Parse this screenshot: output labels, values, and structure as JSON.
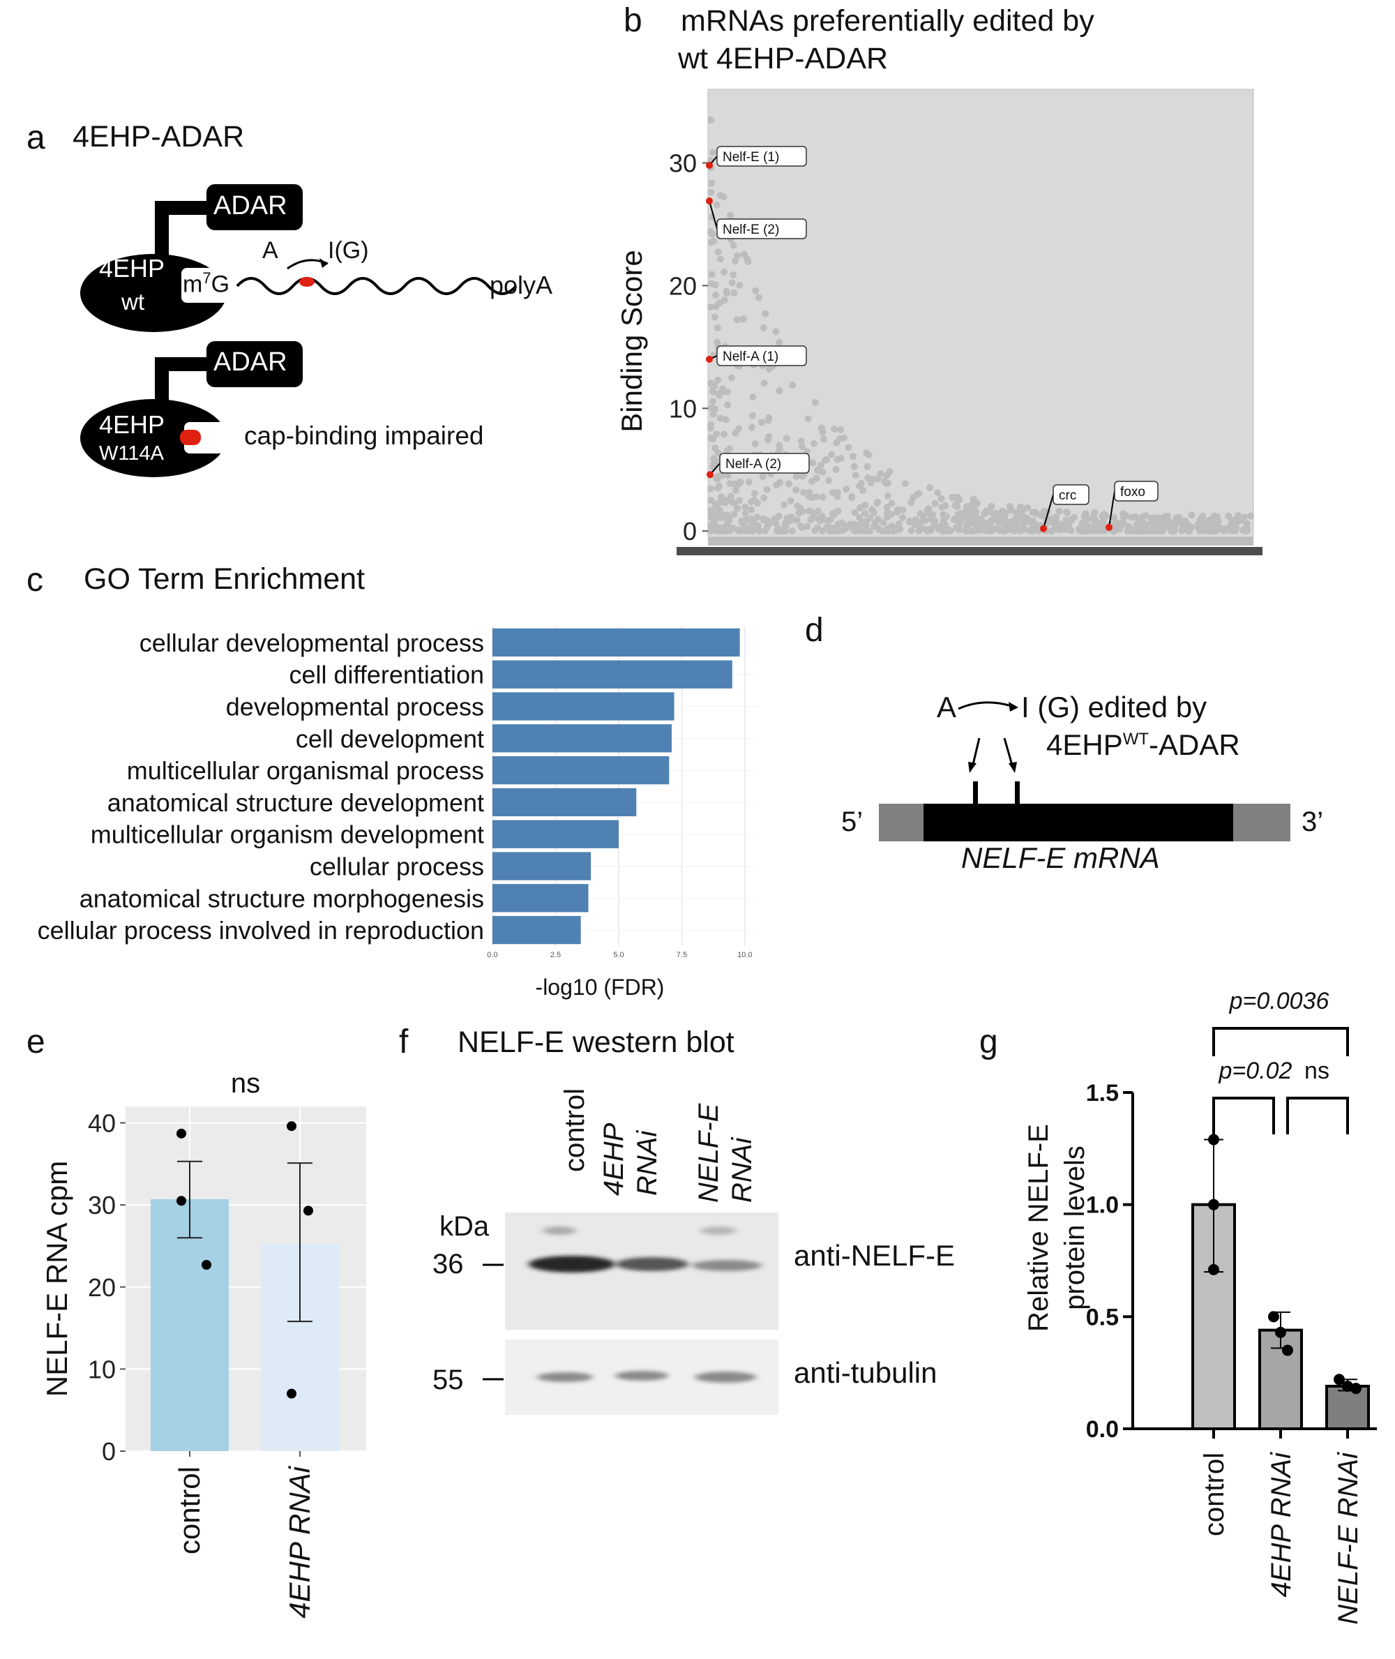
{
  "panel_a": {
    "label": "a",
    "title": "4EHP-ADAR",
    "adar": "ADAR",
    "wt_protein": "4EHP",
    "wt_sub": "wt",
    "cap": "m",
    "cap_sup": "7",
    "cap_g": "G",
    "edit_from": "A",
    "edit_to": "I(G)",
    "polya": "polyA",
    "mut_protein": "4EHP",
    "mut_sub": "W114A",
    "mut_note": "cap-binding impaired"
  },
  "panel_b": {
    "label": "b",
    "title_line1": "mRNAs preferentially edited by",
    "title_line2": "wt 4EHP-ADAR"
  },
  "panel_c": {
    "label": "c",
    "title": "GO Term Enrichment"
  },
  "panel_d": {
    "label": "d",
    "edit_from": "A",
    "edit_line1": "I (G) edited by",
    "edit_line2_pre": "4EHP",
    "edit_line2_sup": "WT",
    "edit_line2_post": "-ADAR",
    "five_prime": "5’",
    "three_prime": "3’",
    "mrna_name": "NELF-E mRNA"
  },
  "panel_e": {
    "label": "e"
  },
  "panel_f": {
    "label": "f",
    "title": "NELF-E western blot",
    "lanes": [
      "control",
      "4EHP RNAi",
      "NELF-E RNAi"
    ],
    "kda": "kDa",
    "marker_36": "36",
    "marker_55": "55",
    "anti_nelf": "anti-NELF-E",
    "anti_tubulin": "anti-tubulin"
  },
  "panel_g": {
    "label": "g"
  },
  "chart_data": [
    {
      "id": "b",
      "type": "scatter",
      "title": "",
      "xlabel": "",
      "ylabel": "Binding Score",
      "ylim": [
        -0.5,
        36
      ],
      "yticks": [
        0,
        10,
        20,
        30
      ],
      "grid": false,
      "highlighted": [
        {
          "label": "Nelf-E (1)",
          "x": 0.2,
          "y": 29.8
        },
        {
          "label": "Nelf-E (2)",
          "x": 0.3,
          "y": 26.9
        },
        {
          "label": "Nelf-A (1)",
          "x": 0.4,
          "y": 14.0
        },
        {
          "label": "Nelf-A (2)",
          "x": 0.5,
          "y": 4.6
        },
        {
          "label": "crc",
          "x": 60,
          "y": 0.2
        },
        {
          "label": "foxo",
          "x": 72,
          "y": 0.3
        }
      ],
      "background_trend": "exponential decay from ~35 to ~0 across ranked mRNAs"
    },
    {
      "id": "c",
      "type": "bar",
      "orientation": "horizontal",
      "title": "GO Term Enrichment",
      "xlabel": "-log10 (FDR)",
      "ylabel": "",
      "xlim": [
        0,
        10.5
      ],
      "xticks": [
        "0.0",
        "2.5",
        "5.0",
        "7.5",
        "10.0"
      ],
      "categories": [
        "cellular developmental process",
        "cell differentiation",
        "developmental process",
        "cell development",
        "multicellular organismal process",
        "anatomical structure development",
        "multicellular organism development",
        "cellular process",
        "anatomical structure morphogenesis",
        "cellular process involved in reproduction"
      ],
      "values": [
        9.8,
        9.5,
        7.2,
        7.1,
        7.0,
        5.7,
        5.0,
        3.9,
        3.8,
        3.5
      ],
      "color": "#4f81b3"
    },
    {
      "id": "e",
      "type": "bar",
      "title": "ns",
      "xlabel": "",
      "ylabel": "NELF-E RNA cpm",
      "ylim": [
        0,
        42
      ],
      "yticks": [
        0,
        10,
        20,
        30,
        40
      ],
      "categories": [
        "control",
        "4EHP RNAi"
      ],
      "values": [
        30.7,
        25.3
      ],
      "error_low": [
        26.0,
        15.8
      ],
      "error_high": [
        35.3,
        35.1
      ],
      "points": [
        [
          38.7,
          30.5,
          22.7
        ],
        [
          39.6,
          29.3,
          7.0
        ]
      ],
      "colors": [
        "#a6d0e4",
        "#deebf6"
      ]
    },
    {
      "id": "g",
      "type": "bar",
      "title": "",
      "xlabel": "",
      "ylabel": "Relative NELF-E protein levels",
      "ylim": [
        0,
        1.5
      ],
      "yticks": [
        "0.0",
        "0.5",
        "1.0",
        "1.5"
      ],
      "categories": [
        "control",
        "4EHP RNAi",
        "NELF-E RNAi"
      ],
      "values": [
        1.0,
        0.44,
        0.19
      ],
      "error_low": [
        0.7,
        0.36,
        0.17
      ],
      "error_high": [
        1.29,
        0.52,
        0.22
      ],
      "points": [
        [
          1.29,
          1.0,
          0.71
        ],
        [
          0.5,
          0.43,
          0.35
        ],
        [
          0.22,
          0.19,
          0.18
        ]
      ],
      "colors": [
        "#bfbfbf",
        "#a6a6a6",
        "#7f7f7f"
      ],
      "comparisons": [
        {
          "pair": [
            "control",
            "NELF-E RNAi"
          ],
          "label": "p=0.0036"
        },
        {
          "pair": [
            "control",
            "4EHP RNAi"
          ],
          "label": "p=0.02"
        },
        {
          "pair": [
            "4EHP RNAi",
            "NELF-E RNAi"
          ],
          "label": "ns"
        }
      ]
    }
  ]
}
